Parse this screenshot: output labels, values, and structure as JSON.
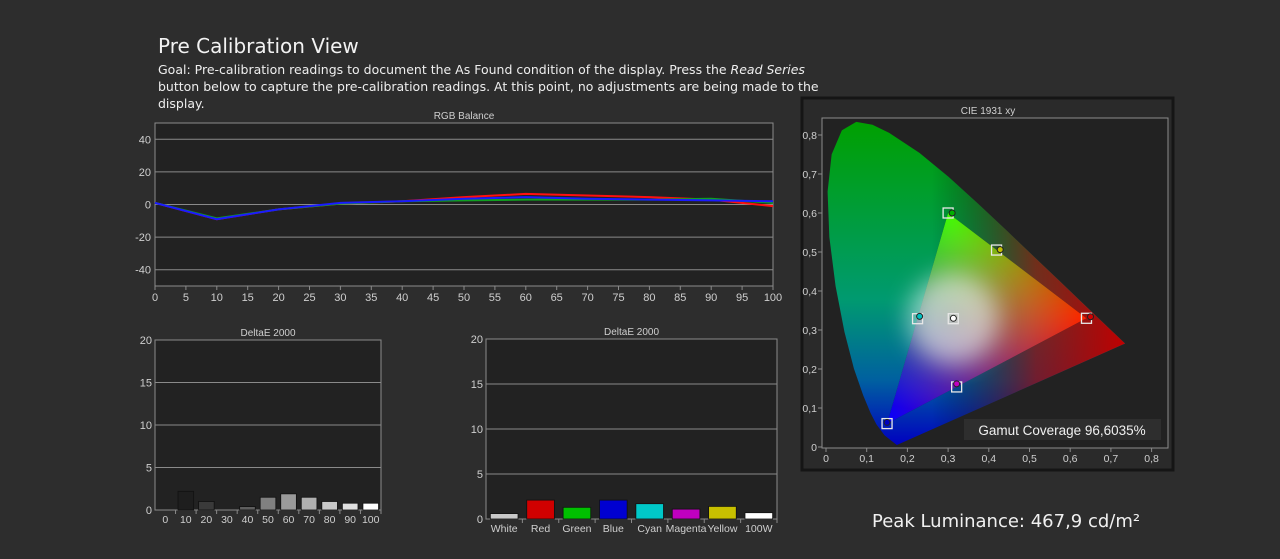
{
  "header": {
    "title": "Pre Calibration View",
    "goal_pre": "Goal: Pre-calibration readings to document the As Found condition of the display. Press the ",
    "goal_em": "Read Series",
    "goal_post": " button below to capture the pre-calibration readings. At this point, no adjustments are being made to the display."
  },
  "peak_luminance": "Peak Luminance: 467,9 cd/m²",
  "chart_data": [
    {
      "type": "line",
      "title": "RGB Balance",
      "x": [
        0,
        10,
        20,
        30,
        40,
        50,
        60,
        70,
        80,
        90,
        100
      ],
      "xticks": [
        0,
        5,
        10,
        15,
        20,
        25,
        30,
        35,
        40,
        45,
        50,
        55,
        60,
        65,
        70,
        75,
        80,
        85,
        90,
        95,
        100
      ],
      "yticks": [
        -40,
        -20,
        0,
        20,
        40
      ],
      "xlim": [
        0,
        100
      ],
      "ylim": [
        -50,
        50
      ],
      "grid": true,
      "series": [
        {
          "color": "#ff1010",
          "values": [
            1,
            -9,
            -3,
            0.5,
            2,
            4.5,
            6.5,
            5.5,
            4.5,
            3,
            -1
          ]
        },
        {
          "color": "#10a020",
          "values": [
            1,
            -8.5,
            -3,
            0.5,
            2,
            2.5,
            3,
            3,
            3,
            3.5,
            1
          ]
        },
        {
          "color": "#1a1aff",
          "values": [
            1,
            -9,
            -3,
            1,
            2,
            3.5,
            4.5,
            3.5,
            3,
            2.5,
            2
          ]
        }
      ]
    },
    {
      "type": "bar",
      "title": "DeltaE 2000",
      "categories": [
        "0",
        "10",
        "20",
        "30",
        "40",
        "50",
        "60",
        "70",
        "80",
        "90",
        "100"
      ],
      "values": [
        0,
        2.2,
        1.0,
        0,
        0.4,
        1.5,
        1.9,
        1.5,
        1.0,
        0.8,
        0.8
      ],
      "colors": [
        "#000000",
        "#1e1e1e",
        "#3a3a3a",
        "#4a4a4a",
        "#5e5e5e",
        "#808080",
        "#9a9a9a",
        "#b0b0b0",
        "#c8c8c8",
        "#e0e0e0",
        "#ffffff"
      ],
      "yticks": [
        0,
        5,
        10,
        15,
        20
      ],
      "ylim": [
        0,
        20
      ],
      "grid": true
    },
    {
      "type": "bar",
      "title": "DeltaE 2000",
      "categories": [
        "White",
        "Red",
        "Green",
        "Blue",
        "Cyan",
        "Magenta",
        "Yellow",
        "100W"
      ],
      "values": [
        0.6,
        2.1,
        1.3,
        2.1,
        1.7,
        1.1,
        1.4,
        0.7
      ],
      "colors": [
        "#c8c8c8",
        "#d00000",
        "#00c000",
        "#0000d0",
        "#00c8c8",
        "#c000c0",
        "#c8c000",
        "#ffffff"
      ],
      "yticks": [
        0,
        5,
        10,
        15,
        20
      ],
      "ylim": [
        0,
        20
      ],
      "grid": true
    },
    {
      "type": "scatter",
      "title": "CIE 1931 xy",
      "xticks": [
        "0",
        "0,1",
        "0,2",
        "0,3",
        "0,4",
        "0,5",
        "0,6",
        "0,7",
        "0,8"
      ],
      "yticks": [
        "0",
        "0,1",
        "0,2",
        "0,3",
        "0,4",
        "0,5",
        "0,6",
        "0,7",
        "0,8"
      ],
      "xlim": [
        0,
        0.8
      ],
      "ylim": [
        0,
        0.8
      ],
      "targets": [
        {
          "name": "Red",
          "x": 0.64,
          "y": 0.33
        },
        {
          "name": "Green",
          "x": 0.3,
          "y": 0.6
        },
        {
          "name": "Blue",
          "x": 0.15,
          "y": 0.06
        },
        {
          "name": "White",
          "x": 0.3127,
          "y": 0.329
        },
        {
          "name": "Cyan",
          "x": 0.225,
          "y": 0.329
        },
        {
          "name": "Magenta",
          "x": 0.321,
          "y": 0.154
        },
        {
          "name": "Yellow",
          "x": 0.419,
          "y": 0.505
        }
      ],
      "measured": [
        {
          "name": "Red",
          "x": 0.65,
          "y": 0.334,
          "color": "#d00000"
        },
        {
          "name": "Green",
          "x": 0.31,
          "y": 0.6,
          "color": "#00b000"
        },
        {
          "name": "Blue",
          "x": 0.15,
          "y": 0.063,
          "color": "#0000c0"
        },
        {
          "name": "White",
          "x": 0.313,
          "y": 0.33,
          "color": "#ffffff"
        },
        {
          "name": "Cyan",
          "x": 0.23,
          "y": 0.335,
          "color": "#00c0c0"
        },
        {
          "name": "Magenta",
          "x": 0.321,
          "y": 0.162,
          "color": "#c000c0"
        },
        {
          "name": "Yellow",
          "x": 0.428,
          "y": 0.506,
          "color": "#c0c000"
        }
      ],
      "gamut_coverage": "Gamut Coverage 96,6035%"
    }
  ]
}
